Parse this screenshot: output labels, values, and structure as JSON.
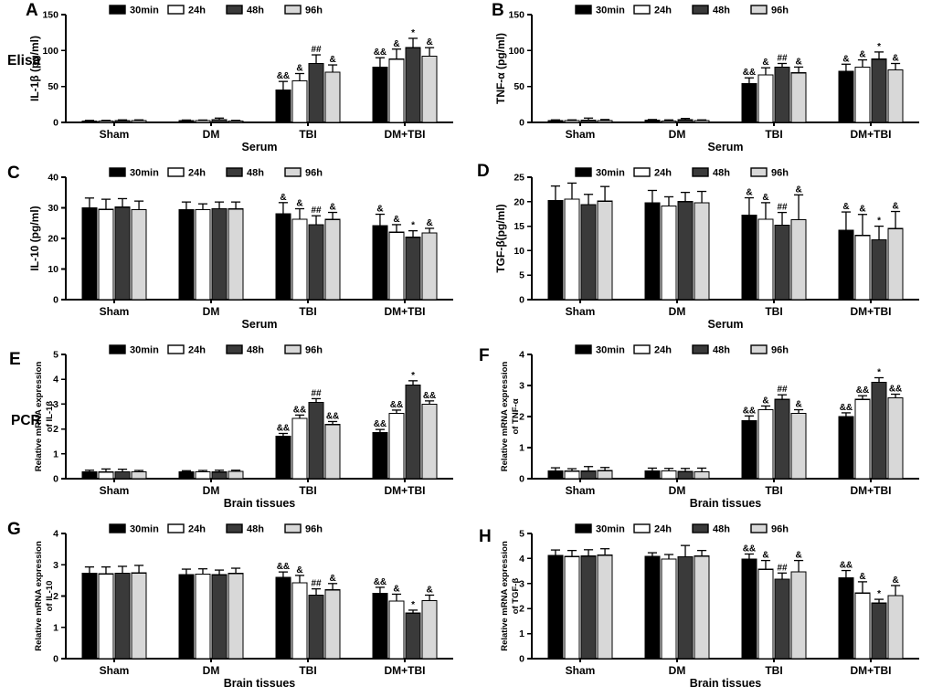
{
  "figure": {
    "row_labels": [
      {
        "text": "Elisa"
      },
      {
        "text": "PCR"
      }
    ],
    "legend": {
      "labels": [
        "30min",
        "24h",
        "48h",
        "96h"
      ],
      "colors": [
        "#000000",
        "#ffffff",
        "#3a3a3a",
        "#d8d8d8"
      ]
    }
  },
  "chart_data": [
    {
      "panel": "A",
      "type": "bar",
      "title": "",
      "ylabel_lines": [
        "IL-1β (pg/ml)"
      ],
      "xlabel": "Serum",
      "ylim": [
        0,
        150
      ],
      "yticks": [
        0,
        50,
        100,
        150
      ],
      "categories": [
        "Sham",
        "DM",
        "TBI",
        "DM+TBI"
      ],
      "series": [
        {
          "name": "30min",
          "values": [
            2.0,
            2.5,
            45,
            77
          ],
          "errors": [
            0.8,
            0.8,
            12,
            13
          ]
        },
        {
          "name": "24h",
          "values": [
            2.0,
            2.5,
            58,
            88
          ],
          "errors": [
            0.8,
            0.8,
            10,
            14
          ]
        },
        {
          "name": "48h",
          "values": [
            2.5,
            4.0,
            82,
            104
          ],
          "errors": [
            1.0,
            2.0,
            12,
            13
          ]
        },
        {
          "name": "96h",
          "values": [
            2.5,
            2.0,
            70,
            92
          ],
          "errors": [
            1.0,
            0.8,
            10,
            12
          ]
        }
      ],
      "annotations": [
        [
          "",
          "",
          "",
          ""
        ],
        [
          "",
          "",
          "",
          ""
        ],
        [
          "&&",
          "&",
          "##",
          "&"
        ],
        [
          "&&",
          "&",
          "*",
          "&"
        ]
      ]
    },
    {
      "panel": "B",
      "type": "bar",
      "title": "",
      "ylabel_lines": [
        "TNF-α (pg/ml)"
      ],
      "xlabel": "Serum",
      "ylim": [
        0,
        150
      ],
      "yticks": [
        0,
        50,
        100,
        150
      ],
      "categories": [
        "Sham",
        "DM",
        "TBI",
        "DM+TBI"
      ],
      "series": [
        {
          "name": "30min",
          "values": [
            2.5,
            3.0,
            54,
            71
          ],
          "errors": [
            1.0,
            1.0,
            8,
            10
          ]
        },
        {
          "name": "24h",
          "values": [
            2.5,
            2.0,
            66,
            77
          ],
          "errors": [
            1.0,
            1.5,
            10,
            10
          ]
        },
        {
          "name": "48h",
          "values": [
            3.0,
            3.5,
            77,
            88
          ],
          "errors": [
            3.0,
            2.0,
            5,
            10
          ]
        },
        {
          "name": "96h",
          "values": [
            2.5,
            2.5,
            69,
            73
          ],
          "errors": [
            1.5,
            1.0,
            8,
            9
          ]
        }
      ],
      "annotations": [
        [
          "",
          "",
          "",
          ""
        ],
        [
          "",
          "",
          "",
          ""
        ],
        [
          "&&",
          "&",
          "##",
          "&"
        ],
        [
          "&",
          "&",
          "*",
          "&"
        ]
      ]
    },
    {
      "panel": "C",
      "type": "bar",
      "title": "",
      "ylabel_lines": [
        "IL-10 (pg/ml)"
      ],
      "xlabel": "Serum",
      "ylim": [
        0,
        40
      ],
      "yticks": [
        0,
        10,
        20,
        30,
        40
      ],
      "categories": [
        "Sham",
        "DM",
        "TBI",
        "DM+TBI"
      ],
      "series": [
        {
          "name": "30min",
          "values": [
            30.0,
            29.4,
            28.1,
            24.1
          ],
          "errors": [
            3.2,
            2.5,
            3.6,
            3.8
          ]
        },
        {
          "name": "24h",
          "values": [
            29.5,
            29.4,
            26.3,
            22.0
          ],
          "errors": [
            3.3,
            1.9,
            3.4,
            2.5
          ]
        },
        {
          "name": "48h",
          "values": [
            30.2,
            29.7,
            24.5,
            20.4
          ],
          "errors": [
            2.8,
            2.2,
            2.9,
            2.1
          ]
        },
        {
          "name": "96h",
          "values": [
            29.4,
            29.6,
            26.2,
            21.8
          ],
          "errors": [
            2.8,
            2.3,
            2.3,
            1.5
          ]
        }
      ],
      "annotations": [
        [
          "",
          "",
          "",
          ""
        ],
        [
          "",
          "",
          "",
          ""
        ],
        [
          "&",
          "&",
          "##",
          "&"
        ],
        [
          "&",
          "&",
          "*",
          "&"
        ]
      ]
    },
    {
      "panel": "D",
      "type": "bar",
      "title": "",
      "ylabel_lines": [
        "TGF-β(pg/ml)"
      ],
      "xlabel": "Serum",
      "ylim": [
        0,
        25
      ],
      "yticks": [
        0,
        5,
        10,
        15,
        20,
        25
      ],
      "categories": [
        "Sham",
        "DM",
        "TBI",
        "DM+TBI"
      ],
      "series": [
        {
          "name": "30min",
          "values": [
            20.2,
            19.8,
            17.2,
            14.2
          ],
          "errors": [
            3.0,
            2.5,
            3.6,
            3.7
          ]
        },
        {
          "name": "24h",
          "values": [
            20.5,
            19.1,
            16.4,
            13.1
          ],
          "errors": [
            3.3,
            1.9,
            3.4,
            4.3
          ]
        },
        {
          "name": "48h",
          "values": [
            19.4,
            20.0,
            15.2,
            12.2
          ],
          "errors": [
            2.1,
            1.9,
            2.6,
            2.8
          ]
        },
        {
          "name": "96h",
          "values": [
            20.1,
            19.8,
            16.3,
            14.5
          ],
          "errors": [
            3.0,
            2.3,
            5.1,
            3.5
          ]
        }
      ],
      "annotations": [
        [
          "",
          "",
          "",
          ""
        ],
        [
          "",
          "",
          "",
          ""
        ],
        [
          "&",
          "&",
          "##",
          "&"
        ],
        [
          "&",
          "&",
          "*",
          "&"
        ]
      ]
    },
    {
      "panel": "E",
      "type": "bar",
      "title": "",
      "ylabel_lines": [
        "Relative mRNA expression",
        "of IL-1β"
      ],
      "xlabel": "Brain tissues",
      "ylim": [
        0,
        5
      ],
      "yticks": [
        0,
        1,
        2,
        3,
        4,
        5
      ],
      "categories": [
        "Sham",
        "DM",
        "TBI",
        "DM+TBI"
      ],
      "series": [
        {
          "name": "30min",
          "values": [
            0.27,
            0.28,
            1.7,
            1.85
          ],
          "errors": [
            0.07,
            0.04,
            0.12,
            0.13
          ]
        },
        {
          "name": "24h",
          "values": [
            0.27,
            0.28,
            2.43,
            2.63
          ],
          "errors": [
            0.12,
            0.05,
            0.13,
            0.13
          ]
        },
        {
          "name": "48h",
          "values": [
            0.28,
            0.27,
            3.07,
            3.77
          ],
          "errors": [
            0.1,
            0.07,
            0.15,
            0.17
          ]
        },
        {
          "name": "96h",
          "values": [
            0.28,
            0.29,
            2.18,
            3.0
          ],
          "errors": [
            0.05,
            0.05,
            0.12,
            0.13
          ]
        }
      ],
      "annotations": [
        [
          "",
          "",
          "",
          ""
        ],
        [
          "",
          "",
          "",
          ""
        ],
        [
          "&&",
          "&&",
          "##",
          "&&"
        ],
        [
          "&&",
          "&&",
          "*",
          "&&"
        ]
      ]
    },
    {
      "panel": "F",
      "type": "bar",
      "title": "",
      "ylabel_lines": [
        "Relative mRNA expression",
        "of TNF-α"
      ],
      "xlabel": "Brain tissues",
      "ylim": [
        0,
        4
      ],
      "yticks": [
        0,
        1,
        2,
        3,
        4
      ],
      "categories": [
        "Sham",
        "DM",
        "TBI",
        "DM+TBI"
      ],
      "series": [
        {
          "name": "30min",
          "values": [
            0.25,
            0.24,
            1.87,
            2.0
          ],
          "errors": [
            0.1,
            0.1,
            0.15,
            0.12
          ]
        },
        {
          "name": "24h",
          "values": [
            0.24,
            0.25,
            2.22,
            2.55
          ],
          "errors": [
            0.08,
            0.08,
            0.12,
            0.12
          ]
        },
        {
          "name": "48h",
          "values": [
            0.24,
            0.23,
            2.55,
            3.1
          ],
          "errors": [
            0.15,
            0.1,
            0.15,
            0.15
          ]
        },
        {
          "name": "96h",
          "values": [
            0.26,
            0.22,
            2.1,
            2.6
          ],
          "errors": [
            0.1,
            0.12,
            0.12,
            0.12
          ]
        }
      ],
      "annotations": [
        [
          "",
          "",
          "",
          ""
        ],
        [
          "",
          "",
          "",
          ""
        ],
        [
          "&&",
          "&",
          "##",
          "&"
        ],
        [
          "&&",
          "&&",
          "*",
          "&&"
        ]
      ]
    },
    {
      "panel": "G",
      "type": "bar",
      "title": "",
      "ylabel_lines": [
        "Relative mRNA expression",
        "of IL-10"
      ],
      "xlabel": "Brain tissues",
      "ylim": [
        0,
        4
      ],
      "yticks": [
        0,
        1,
        2,
        3,
        4
      ],
      "categories": [
        "Sham",
        "DM",
        "TBI",
        "DM+TBI"
      ],
      "series": [
        {
          "name": "30min",
          "values": [
            2.73,
            2.69,
            2.6,
            2.08
          ],
          "errors": [
            0.2,
            0.17,
            0.17,
            0.2
          ]
        },
        {
          "name": "24h",
          "values": [
            2.71,
            2.7,
            2.42,
            1.84
          ],
          "errors": [
            0.22,
            0.17,
            0.24,
            0.22
          ]
        },
        {
          "name": "48h",
          "values": [
            2.73,
            2.68,
            2.03,
            1.45
          ],
          "errors": [
            0.22,
            0.15,
            0.2,
            0.1
          ]
        },
        {
          "name": "96h",
          "values": [
            2.74,
            2.72,
            2.2,
            1.85
          ],
          "errors": [
            0.24,
            0.17,
            0.2,
            0.18
          ]
        }
      ],
      "annotations": [
        [
          "",
          "",
          "",
          ""
        ],
        [
          "",
          "",
          "",
          ""
        ],
        [
          "&&",
          "&",
          "##",
          "&"
        ],
        [
          "&&",
          "&",
          "*",
          "&"
        ]
      ]
    },
    {
      "panel": "H",
      "type": "bar",
      "title": "",
      "ylabel_lines": [
        "Relative mRNA expression",
        "of TGF-β"
      ],
      "xlabel": "Brain tissues",
      "ylim": [
        0,
        5
      ],
      "yticks": [
        0,
        1,
        2,
        3,
        4,
        5
      ],
      "categories": [
        "Sham",
        "DM",
        "TBI",
        "DM+TBI"
      ],
      "series": [
        {
          "name": "30min",
          "values": [
            4.12,
            4.08,
            3.98,
            3.22
          ],
          "errors": [
            0.22,
            0.15,
            0.2,
            0.3
          ]
        },
        {
          "name": "24h",
          "values": [
            4.08,
            3.98,
            3.57,
            2.62
          ],
          "errors": [
            0.24,
            0.18,
            0.35,
            0.45
          ]
        },
        {
          "name": "48h",
          "values": [
            4.1,
            4.07,
            3.17,
            2.22
          ],
          "errors": [
            0.25,
            0.45,
            0.25,
            0.15
          ]
        },
        {
          "name": "96h",
          "values": [
            4.13,
            4.1,
            3.47,
            2.52
          ],
          "errors": [
            0.26,
            0.22,
            0.45,
            0.4
          ]
        }
      ],
      "annotations": [
        [
          "",
          "",
          "",
          ""
        ],
        [
          "",
          "",
          "",
          ""
        ],
        [
          "&&",
          "&",
          "##",
          "&"
        ],
        [
          "&&",
          "&",
          "*",
          "&"
        ]
      ]
    }
  ]
}
